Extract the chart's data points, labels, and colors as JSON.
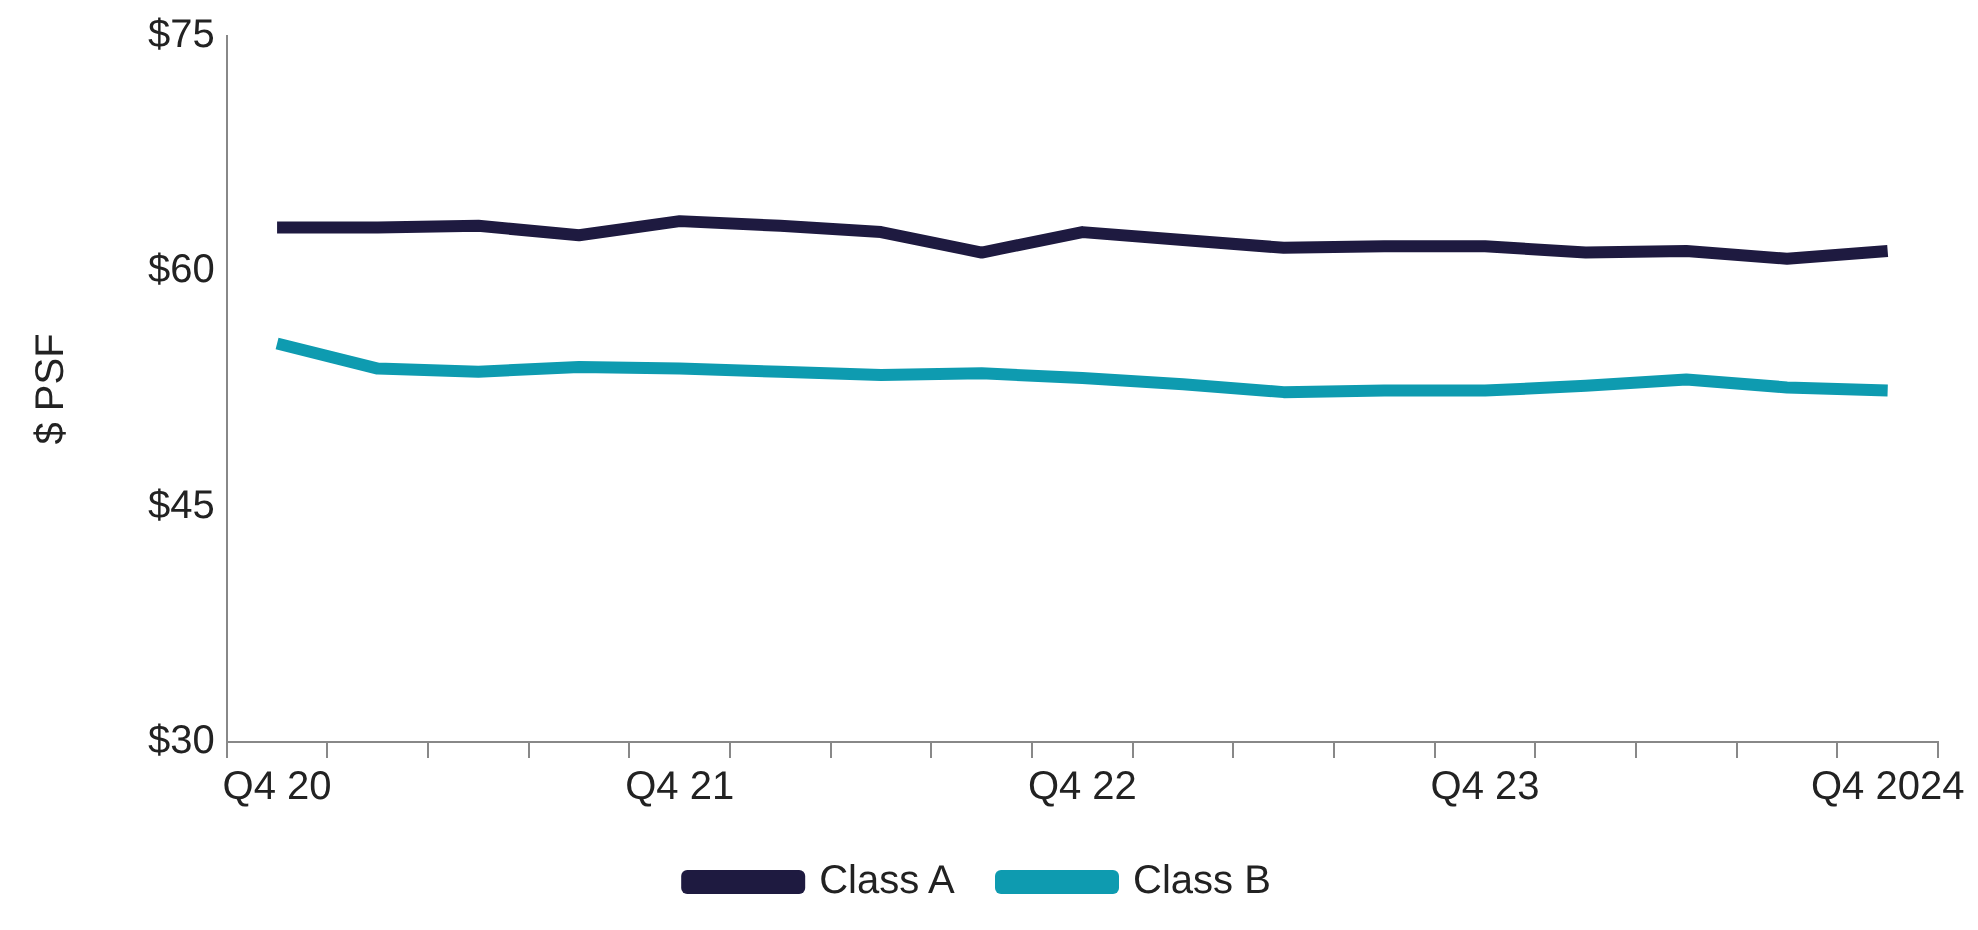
{
  "chart_data": {
    "type": "line",
    "ylabel": "$ PSF",
    "categories": [
      "Q4 20",
      null,
      null,
      null,
      "Q4 21",
      null,
      null,
      null,
      "Q4 22",
      null,
      null,
      null,
      "Q4 23",
      null,
      null,
      null,
      "Q4 2024"
    ],
    "series": [
      {
        "name": "Class A",
        "color": "#1e1a40",
        "values": [
          62.8,
          62.8,
          62.9,
          62.3,
          63.2,
          62.9,
          62.5,
          61.2,
          62.5,
          62.0,
          61.5,
          61.6,
          61.6,
          61.2,
          61.3,
          60.8,
          61.3
        ]
      },
      {
        "name": "Class B",
        "color": "#0e9bb0",
        "values": [
          55.4,
          53.8,
          53.6,
          53.9,
          53.8,
          53.6,
          53.4,
          53.5,
          53.2,
          52.8,
          52.3,
          52.4,
          52.4,
          52.7,
          53.1,
          52.6,
          52.4
        ]
      }
    ],
    "ylim": [
      30,
      75
    ],
    "yticks": [
      {
        "value": 30,
        "label": "$30"
      },
      {
        "value": 45,
        "label": "$45"
      },
      {
        "value": 60,
        "label": "$60"
      },
      {
        "value": 75,
        "label": "$75"
      }
    ],
    "grid": false,
    "legend": "bottom",
    "marker": "none",
    "line_style": "solid"
  }
}
